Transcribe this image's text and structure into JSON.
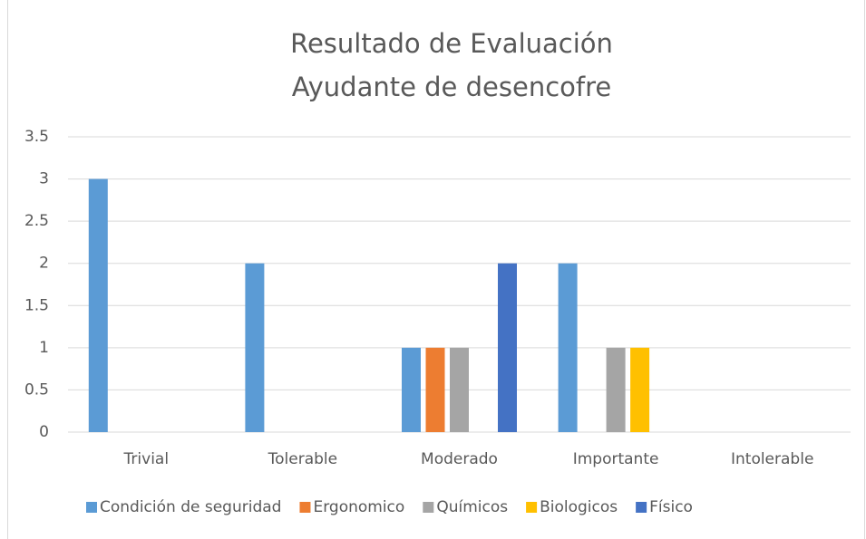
{
  "chart_data": {
    "type": "bar",
    "title": [
      "Resultado de Evaluación",
      "Ayudante de desencofre"
    ],
    "categories": [
      "Trivial",
      "Tolerable",
      "Moderado",
      "Importante",
      "Intolerable"
    ],
    "series": [
      {
        "name": "Condición de seguridad",
        "color": "#5b9bd5",
        "values": [
          3,
          2,
          1,
          2,
          0
        ]
      },
      {
        "name": "Ergonomico",
        "color": "#ed7d31",
        "values": [
          0,
          0,
          1,
          0,
          0
        ]
      },
      {
        "name": "Químicos",
        "color": "#a5a5a5",
        "values": [
          0,
          0,
          1,
          1,
          0
        ]
      },
      {
        "name": "Biologicos",
        "color": "#ffc000",
        "values": [
          0,
          0,
          0,
          1,
          0
        ]
      },
      {
        "name": "Físico",
        "color": "#4472c4",
        "values": [
          0,
          0,
          2,
          0,
          0
        ]
      }
    ],
    "ylim": [
      0,
      3.5
    ],
    "yticks": [
      0,
      0.5,
      1,
      1.5,
      2,
      2.5,
      3,
      3.5
    ],
    "grid": true,
    "legend": "bottom"
  }
}
